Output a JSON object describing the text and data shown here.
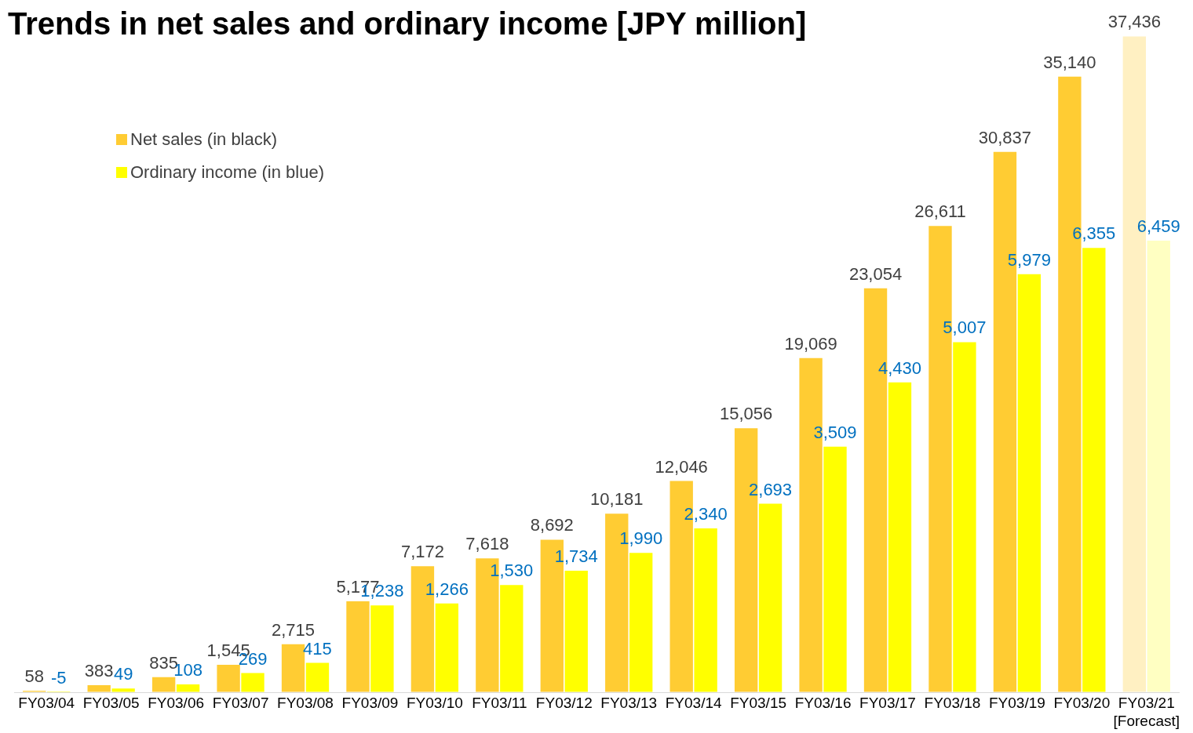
{
  "chart_data": {
    "type": "bar",
    "title": "Trends in net sales and ordinary income [JPY million]",
    "categories": [
      "FY03/04",
      "FY03/05",
      "FY03/06",
      "FY03/07",
      "FY03/08",
      "FY03/09",
      "FY03/10",
      "FY03/11",
      "FY03/12",
      "FY03/13",
      "FY03/14",
      "FY03/15",
      "FY03/16",
      "FY03/17",
      "FY03/18",
      "FY03/19",
      "FY03/20",
      "FY03/21\n[Forecast]"
    ],
    "series": [
      {
        "name": "Net sales (in black)",
        "color": "#ffcc33",
        "colors": [
          "#ffcc33",
          "#ffcc33",
          "#ffcc33",
          "#ffcc33",
          "#ffcc33",
          "#ffcc33",
          "#ffcc33",
          "#ffcc33",
          "#ffcc33",
          "#ffcc33",
          "#ffcc33",
          "#ffcc33",
          "#ffcc33",
          "#ffcc33",
          "#ffcc33",
          "#ffcc33",
          "#ffcc33",
          "#fff0c2"
        ],
        "values": [
          58,
          383,
          835,
          1545,
          2715,
          5177,
          7172,
          7618,
          8692,
          10181,
          12046,
          15056,
          19069,
          23054,
          26611,
          30837,
          35140,
          37436
        ],
        "value_labels": [
          "58",
          "383",
          "835",
          "1,545",
          "2,715",
          "5,177",
          "7,172",
          "7,618",
          "8,692",
          "10,181",
          "12,046",
          "15,056",
          "19,069",
          "23,054",
          "26,611",
          "30,837",
          "35,140",
          "37,436"
        ]
      },
      {
        "name": "Ordinary income (in blue)",
        "color": "#ffff00",
        "axis": "y2",
        "colors": [
          "#ffff00",
          "#ffff00",
          "#ffff00",
          "#ffff00",
          "#ffff00",
          "#ffff00",
          "#ffff00",
          "#ffff00",
          "#ffff00",
          "#ffff00",
          "#ffff00",
          "#ffff00",
          "#ffff00",
          "#ffff00",
          "#ffff00",
          "#ffff00",
          "#ffff00",
          "#ffffc2"
        ],
        "values": [
          -5,
          49,
          108,
          269,
          415,
          1238,
          1266,
          1530,
          1734,
          1990,
          2340,
          2693,
          3509,
          4430,
          5007,
          5979,
          6355,
          6459
        ],
        "value_labels": [
          "-5",
          "49",
          "108",
          "269",
          "415",
          "1,238",
          "1,266",
          "1,530",
          "1,734",
          "1,990",
          "2,340",
          "2,693",
          "3,509",
          "4,430",
          "5,007",
          "5,979",
          "6,355",
          "6,459"
        ]
      }
    ],
    "ylim": [
      -40,
      37500
    ],
    "y2lim": [
      -10,
      9400
    ],
    "data_labels": true,
    "legend": "top left",
    "grid": false
  }
}
